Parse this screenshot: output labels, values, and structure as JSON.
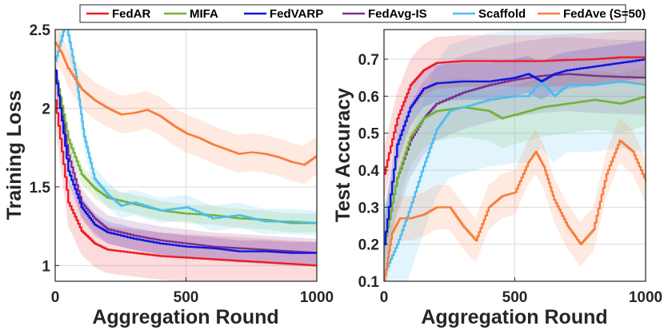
{
  "chart_data": [
    {
      "type": "line",
      "title": "",
      "xlabel": "Aggregation Round",
      "ylabel": "Training Loss",
      "xlim": [
        0,
        1000
      ],
      "ylim": [
        0.9,
        2.5
      ],
      "xticks": [
        0,
        500,
        1000
      ],
      "yticks": [
        1,
        1.5,
        2,
        2.5
      ],
      "xtick_labels": [
        "0",
        "500",
        "1000"
      ],
      "ytick_labels": [
        "1",
        "1.5",
        "2",
        "2.5"
      ],
      "grid": true,
      "series": [
        {
          "name": "FedAvg-IS",
          "x": [
            0,
            50,
            100,
            150,
            200,
            300,
            400,
            500,
            600,
            700,
            800,
            900,
            1000
          ],
          "y": [
            2.22,
            1.7,
            1.4,
            1.3,
            1.23,
            1.19,
            1.16,
            1.14,
            1.12,
            1.11,
            1.1,
            1.09,
            1.08
          ],
          "band": 0.09
        },
        {
          "name": "MIFA",
          "x": [
            0,
            50,
            100,
            150,
            200,
            300,
            400,
            500,
            600,
            700,
            800,
            900,
            1000
          ],
          "y": [
            2.23,
            1.8,
            1.58,
            1.49,
            1.43,
            1.39,
            1.35,
            1.33,
            1.32,
            1.3,
            1.29,
            1.27,
            1.27
          ],
          "band": 0.06
        },
        {
          "name": "Scaffold",
          "x": [
            0,
            40,
            80,
            110,
            150,
            200,
            250,
            300,
            400,
            500,
            600,
            700,
            800,
            900,
            1000
          ],
          "y": [
            2.3,
            2.55,
            2.2,
            1.82,
            1.55,
            1.45,
            1.38,
            1.4,
            1.35,
            1.37,
            1.3,
            1.32,
            1.28,
            1.28,
            1.27
          ],
          "band": 0.08
        },
        {
          "name": "FedVARP",
          "x": [
            0,
            50,
            100,
            150,
            200,
            300,
            400,
            500,
            600,
            700,
            800,
            900,
            1000
          ],
          "y": [
            2.24,
            1.6,
            1.37,
            1.26,
            1.21,
            1.17,
            1.14,
            1.12,
            1.11,
            1.09,
            1.09,
            1.08,
            1.08
          ],
          "band": 0.07
        },
        {
          "name": "FedAR",
          "x": [
            0,
            50,
            100,
            150,
            200,
            300,
            400,
            500,
            600,
            700,
            800,
            900,
            1000
          ],
          "y": [
            2.05,
            1.4,
            1.22,
            1.14,
            1.1,
            1.08,
            1.06,
            1.05,
            1.04,
            1.03,
            1.02,
            1.01,
            1.0
          ],
          "band": 0.15
        },
        {
          "name": "FedAve (S=50)",
          "x": [
            0,
            25,
            50,
            100,
            150,
            200,
            250,
            300,
            350,
            400,
            450,
            500,
            550,
            600,
            650,
            700,
            750,
            800,
            850,
            900,
            950,
            1000
          ],
          "y": [
            2.42,
            2.35,
            2.25,
            2.12,
            2.05,
            2.0,
            1.96,
            1.97,
            1.99,
            1.95,
            1.89,
            1.84,
            1.81,
            1.77,
            1.74,
            1.71,
            1.72,
            1.71,
            1.69,
            1.66,
            1.64,
            1.7
          ],
          "band": 0.12
        }
      ]
    },
    {
      "type": "line",
      "title": "",
      "xlabel": "Aggregation Round",
      "ylabel": "Test Accuracy",
      "xlim": [
        0,
        1000
      ],
      "ylim": [
        0.1,
        0.78
      ],
      "xticks": [
        0,
        500,
        1000
      ],
      "yticks": [
        0.1,
        0.2,
        0.3,
        0.4,
        0.5,
        0.6,
        0.7
      ],
      "xtick_labels": [
        "0",
        "500",
        "1000"
      ],
      "ytick_labels": [
        "0.1",
        "0.2",
        "0.3",
        "0.4",
        "0.5",
        "0.6",
        "0.7"
      ],
      "grid": true,
      "series": [
        {
          "name": "FedAvg-IS",
          "x": [
            0,
            50,
            100,
            150,
            200,
            300,
            400,
            500,
            600,
            700,
            800,
            900,
            1000
          ],
          "y": [
            0.2,
            0.38,
            0.48,
            0.54,
            0.58,
            0.61,
            0.63,
            0.645,
            0.655,
            0.66,
            0.655,
            0.652,
            0.65
          ],
          "band": 0.1
        },
        {
          "name": "MIFA",
          "x": [
            0,
            50,
            100,
            150,
            200,
            300,
            400,
            450,
            500,
            600,
            700,
            800,
            900,
            1000
          ],
          "y": [
            0.2,
            0.38,
            0.49,
            0.54,
            0.56,
            0.57,
            0.56,
            0.54,
            0.55,
            0.57,
            0.58,
            0.59,
            0.58,
            0.6
          ],
          "band": 0.08
        },
        {
          "name": "Scaffold",
          "x": [
            0,
            50,
            100,
            150,
            200,
            250,
            300,
            400,
            500,
            550,
            600,
            650,
            700,
            800,
            900,
            1000
          ],
          "y": [
            0.12,
            0.2,
            0.3,
            0.41,
            0.51,
            0.56,
            0.57,
            0.59,
            0.6,
            0.6,
            0.64,
            0.6,
            0.63,
            0.63,
            0.64,
            0.63
          ],
          "band": 0.18
        },
        {
          "name": "FedVARP",
          "x": [
            0,
            50,
            100,
            150,
            200,
            300,
            400,
            500,
            550,
            600,
            650,
            700,
            800,
            900,
            1000
          ],
          "y": [
            0.2,
            0.47,
            0.57,
            0.62,
            0.635,
            0.64,
            0.64,
            0.65,
            0.66,
            0.64,
            0.66,
            0.67,
            0.68,
            0.69,
            0.7
          ],
          "band": 0.05
        },
        {
          "name": "FedAR",
          "x": [
            0,
            50,
            100,
            150,
            200,
            300,
            400,
            500,
            600,
            700,
            800,
            900,
            1000
          ],
          "y": [
            0.39,
            0.54,
            0.63,
            0.67,
            0.69,
            0.695,
            0.695,
            0.695,
            0.695,
            0.698,
            0.7,
            0.705,
            0.705
          ],
          "band": 0.07
        },
        {
          "name": "FedAve (S=50)",
          "x": [
            0,
            30,
            60,
            100,
            150,
            200,
            250,
            300,
            350,
            400,
            450,
            500,
            550,
            580,
            610,
            650,
            700,
            750,
            800,
            850,
            900,
            950,
            1000
          ],
          "y": [
            0.1,
            0.23,
            0.27,
            0.27,
            0.28,
            0.3,
            0.3,
            0.25,
            0.21,
            0.3,
            0.33,
            0.34,
            0.42,
            0.45,
            0.41,
            0.32,
            0.25,
            0.2,
            0.24,
            0.39,
            0.48,
            0.45,
            0.37
          ],
          "band": 0.06
        }
      ]
    }
  ],
  "legend": {
    "placement": "top-center",
    "entries": [
      {
        "name": "FedAR",
        "color": "#ee1c25"
      },
      {
        "name": "MIFA",
        "color": "#72b235"
      },
      {
        "name": "FedVARP",
        "color": "#0b18e0"
      },
      {
        "name": "FedAvg-IS",
        "color": "#7e2f8e"
      },
      {
        "name": "Scaffold",
        "color": "#4cbeee"
      },
      {
        "name": "FedAve (S=50)",
        "color": "#f97c3c"
      }
    ]
  },
  "colors": {
    "FedAR": "#ee1c25",
    "MIFA": "#72b235",
    "FedVARP": "#0b18e0",
    "FedAvg-IS": "#7e2f8e",
    "Scaffold": "#4cbeee",
    "FedAve (S=50)": "#f97c3c"
  }
}
